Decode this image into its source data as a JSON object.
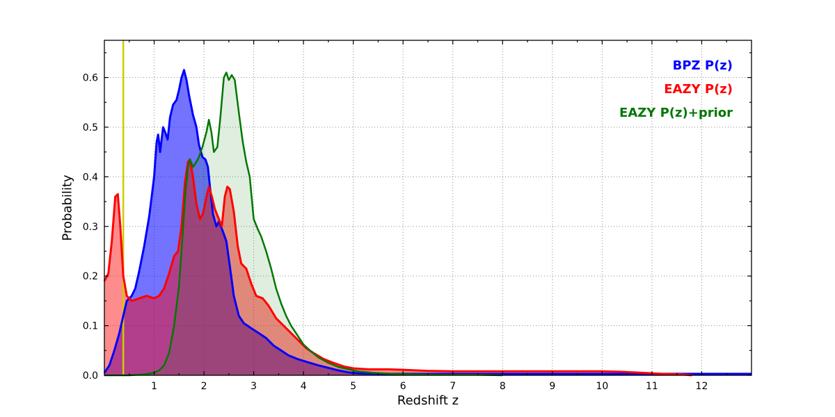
{
  "chart_data": {
    "type": "area",
    "title": "",
    "xlabel": "Redshift z",
    "ylabel": "Probability",
    "xlim": [
      0,
      13
    ],
    "ylim": [
      0,
      0.675
    ],
    "xticks": [
      1,
      2,
      3,
      4,
      5,
      6,
      7,
      8,
      9,
      10,
      11,
      12
    ],
    "yticks": [
      0.0,
      0.1,
      0.2,
      0.3,
      0.4,
      0.5,
      0.6
    ],
    "grid": true,
    "grid_style": "dotted",
    "legend_position": "upper right",
    "vline": {
      "x": 0.38,
      "color": "#cdcd00"
    },
    "series": [
      {
        "name": "BPZ P(z)",
        "color": "#0000ff",
        "fill_opacity": 0.55,
        "line_width": 3,
        "points": [
          [
            0,
            0.005
          ],
          [
            0.1,
            0.02
          ],
          [
            0.2,
            0.05
          ],
          [
            0.3,
            0.085
          ],
          [
            0.38,
            0.12
          ],
          [
            0.45,
            0.15
          ],
          [
            0.55,
            0.16
          ],
          [
            0.62,
            0.175
          ],
          [
            0.7,
            0.21
          ],
          [
            0.8,
            0.26
          ],
          [
            0.9,
            0.32
          ],
          [
            0.95,
            0.36
          ],
          [
            1.0,
            0.4
          ],
          [
            1.05,
            0.47
          ],
          [
            1.08,
            0.485
          ],
          [
            1.12,
            0.45
          ],
          [
            1.18,
            0.5
          ],
          [
            1.22,
            0.49
          ],
          [
            1.27,
            0.475
          ],
          [
            1.32,
            0.52
          ],
          [
            1.38,
            0.545
          ],
          [
            1.45,
            0.555
          ],
          [
            1.5,
            0.575
          ],
          [
            1.55,
            0.6
          ],
          [
            1.6,
            0.615
          ],
          [
            1.65,
            0.595
          ],
          [
            1.7,
            0.565
          ],
          [
            1.78,
            0.525
          ],
          [
            1.85,
            0.5
          ],
          [
            1.9,
            0.465
          ],
          [
            1.97,
            0.44
          ],
          [
            2.03,
            0.435
          ],
          [
            2.08,
            0.42
          ],
          [
            2.12,
            0.38
          ],
          [
            2.18,
            0.325
          ],
          [
            2.25,
            0.3
          ],
          [
            2.3,
            0.31
          ],
          [
            2.38,
            0.29
          ],
          [
            2.45,
            0.27
          ],
          [
            2.52,
            0.22
          ],
          [
            2.6,
            0.16
          ],
          [
            2.7,
            0.12
          ],
          [
            2.8,
            0.105
          ],
          [
            2.95,
            0.095
          ],
          [
            3.1,
            0.085
          ],
          [
            3.25,
            0.075
          ],
          [
            3.4,
            0.06
          ],
          [
            3.55,
            0.05
          ],
          [
            3.7,
            0.04
          ],
          [
            3.9,
            0.032
          ],
          [
            4.1,
            0.026
          ],
          [
            4.3,
            0.02
          ],
          [
            4.5,
            0.015
          ],
          [
            4.7,
            0.01
          ],
          [
            4.9,
            0.006
          ],
          [
            5.1,
            0.004
          ],
          [
            5.5,
            0.003
          ],
          [
            6,
            0.003
          ],
          [
            7,
            0.003
          ],
          [
            8,
            0.003
          ],
          [
            9,
            0.003
          ],
          [
            10,
            0.003
          ],
          [
            11,
            0.003
          ],
          [
            12,
            0.003
          ],
          [
            13,
            0.003
          ]
        ]
      },
      {
        "name": "EAZY P(z)",
        "color": "#ff0000",
        "fill_opacity": 0.45,
        "line_width": 3,
        "points": [
          [
            0,
            0.19
          ],
          [
            0.08,
            0.205
          ],
          [
            0.15,
            0.27
          ],
          [
            0.22,
            0.36
          ],
          [
            0.27,
            0.365
          ],
          [
            0.32,
            0.3
          ],
          [
            0.38,
            0.2
          ],
          [
            0.45,
            0.16
          ],
          [
            0.55,
            0.15
          ],
          [
            0.7,
            0.155
          ],
          [
            0.85,
            0.16
          ],
          [
            1.0,
            0.155
          ],
          [
            1.1,
            0.16
          ],
          [
            1.2,
            0.175
          ],
          [
            1.3,
            0.205
          ],
          [
            1.4,
            0.24
          ],
          [
            1.48,
            0.25
          ],
          [
            1.55,
            0.3
          ],
          [
            1.62,
            0.39
          ],
          [
            1.68,
            0.43
          ],
          [
            1.72,
            0.435
          ],
          [
            1.78,
            0.4
          ],
          [
            1.85,
            0.345
          ],
          [
            1.92,
            0.315
          ],
          [
            1.98,
            0.325
          ],
          [
            2.05,
            0.36
          ],
          [
            2.1,
            0.38
          ],
          [
            2.16,
            0.36
          ],
          [
            2.22,
            0.335
          ],
          [
            2.3,
            0.315
          ],
          [
            2.36,
            0.3
          ],
          [
            2.42,
            0.36
          ],
          [
            2.47,
            0.38
          ],
          [
            2.52,
            0.375
          ],
          [
            2.6,
            0.33
          ],
          [
            2.68,
            0.26
          ],
          [
            2.75,
            0.225
          ],
          [
            2.85,
            0.215
          ],
          [
            2.95,
            0.185
          ],
          [
            3.05,
            0.16
          ],
          [
            3.18,
            0.155
          ],
          [
            3.3,
            0.14
          ],
          [
            3.45,
            0.115
          ],
          [
            3.6,
            0.1
          ],
          [
            3.75,
            0.085
          ],
          [
            3.9,
            0.07
          ],
          [
            4.05,
            0.055
          ],
          [
            4.2,
            0.045
          ],
          [
            4.4,
            0.033
          ],
          [
            4.6,
            0.025
          ],
          [
            4.8,
            0.018
          ],
          [
            5.0,
            0.014
          ],
          [
            5.3,
            0.012
          ],
          [
            5.7,
            0.012
          ],
          [
            6.0,
            0.011
          ],
          [
            6.5,
            0.009
          ],
          [
            7.0,
            0.008
          ],
          [
            7.5,
            0.008
          ],
          [
            8.0,
            0.008
          ],
          [
            8.5,
            0.008
          ],
          [
            9.0,
            0.008
          ],
          [
            9.5,
            0.008
          ],
          [
            10.0,
            0.008
          ],
          [
            10.4,
            0.007
          ],
          [
            10.8,
            0.005
          ],
          [
            11.2,
            0.003
          ],
          [
            11.6,
            0.002
          ],
          [
            11.8,
            0.0
          ]
        ]
      },
      {
        "name": "EAZY P(z)+prior",
        "color": "#007700",
        "fill_opacity": 0.12,
        "line_width": 2.5,
        "points": [
          [
            0,
            0.0
          ],
          [
            0.5,
            0.0
          ],
          [
            0.8,
            0.002
          ],
          [
            1.0,
            0.005
          ],
          [
            1.1,
            0.01
          ],
          [
            1.2,
            0.02
          ],
          [
            1.3,
            0.045
          ],
          [
            1.4,
            0.1
          ],
          [
            1.5,
            0.18
          ],
          [
            1.57,
            0.28
          ],
          [
            1.63,
            0.37
          ],
          [
            1.68,
            0.42
          ],
          [
            1.72,
            0.435
          ],
          [
            1.78,
            0.42
          ],
          [
            1.85,
            0.43
          ],
          [
            1.9,
            0.44
          ],
          [
            1.97,
            0.46
          ],
          [
            2.05,
            0.49
          ],
          [
            2.1,
            0.515
          ],
          [
            2.15,
            0.49
          ],
          [
            2.2,
            0.45
          ],
          [
            2.27,
            0.46
          ],
          [
            2.33,
            0.52
          ],
          [
            2.4,
            0.6
          ],
          [
            2.45,
            0.61
          ],
          [
            2.5,
            0.595
          ],
          [
            2.56,
            0.605
          ],
          [
            2.62,
            0.595
          ],
          [
            2.7,
            0.53
          ],
          [
            2.78,
            0.47
          ],
          [
            2.85,
            0.43
          ],
          [
            2.92,
            0.4
          ],
          [
            3.0,
            0.315
          ],
          [
            3.08,
            0.295
          ],
          [
            3.15,
            0.28
          ],
          [
            3.25,
            0.25
          ],
          [
            3.35,
            0.215
          ],
          [
            3.45,
            0.175
          ],
          [
            3.55,
            0.145
          ],
          [
            3.65,
            0.12
          ],
          [
            3.75,
            0.1
          ],
          [
            3.85,
            0.085
          ],
          [
            4.0,
            0.062
          ],
          [
            4.15,
            0.048
          ],
          [
            4.3,
            0.036
          ],
          [
            4.5,
            0.025
          ],
          [
            4.7,
            0.017
          ],
          [
            4.9,
            0.012
          ],
          [
            5.1,
            0.008
          ],
          [
            5.4,
            0.005
          ],
          [
            5.8,
            0.003
          ],
          [
            6.2,
            0.002
          ],
          [
            6.8,
            0.001
          ],
          [
            7.5,
            0.001
          ],
          [
            8.0,
            0.0
          ]
        ]
      }
    ]
  }
}
